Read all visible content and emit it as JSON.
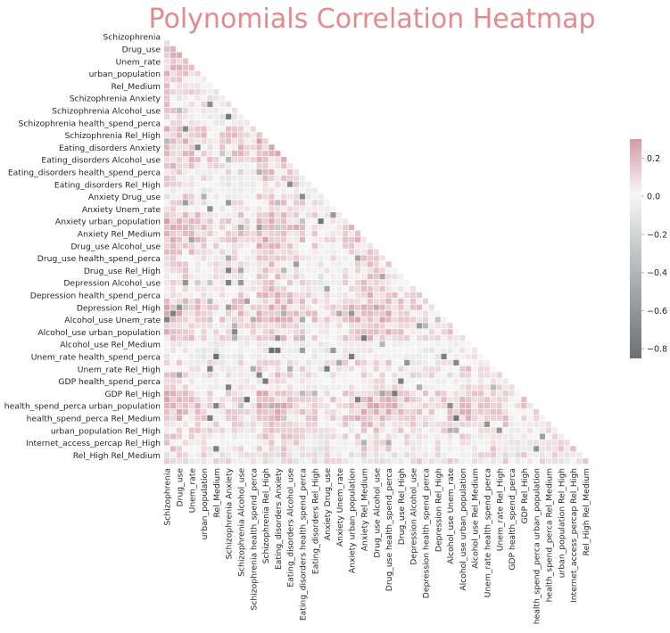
{
  "chart_data": {
    "type": "heatmap",
    "title": "Polynomials Correlation Heatmap",
    "row_tick_labels": [
      "Schizophrenia",
      "Drug_use",
      "Unem_rate",
      "urban_population",
      "Rel_Medium",
      "Schizophrenia Anxiety",
      "Schizophrenia Alcohol_use",
      "Schizophrenia health_spend_perca",
      "Schizophrenia Rel_High",
      "Eating_disorders Anxiety",
      "Eating_disorders Alcohol_use",
      "Eating_disorders health_spend_perca",
      "Eating_disorders Rel_High",
      "Anxiety Drug_use",
      "Anxiety Unem_rate",
      "Anxiety urban_population",
      "Anxiety Rel_Medium",
      "Drug_use Alcohol_use",
      "Drug_use health_spend_perca",
      "Drug_use Rel_High",
      "Depression Alcohol_use",
      "Depression health_spend_perca",
      "Depression Rel_High",
      "Alcohol_use Unem_rate",
      "Alcohol_use urban_population",
      "Alcohol_use Rel_Medium",
      "Unem_rate health_spend_perca",
      "Unem_rate Rel_High",
      "GDP health_spend_perca",
      "GDP Rel_High",
      "health_spend_perca urban_population",
      "health_spend_perca Rel_Medium",
      "urban_population Rel_High",
      "Internet_access_percap Rel_High",
      "Rel_High Rel_Medium"
    ],
    "column_tick_labels": [
      "Schizophrenia",
      "Drug_use",
      "Unem_rate",
      "urban_population",
      "Rel_Medium",
      "Schizophrenia Anxiety",
      "Schizophrenia Alcohol_use",
      "Schizophrenia health_spend_perca",
      "Schizophrenia Rel_High",
      "Eating_disorders Anxiety",
      "Eating_disorders Alcohol_use",
      "Eating_disorders health_spend_perca",
      "Eating_disorders Rel_High",
      "Anxiety Drug_use",
      "Anxiety Unem_rate",
      "Anxiety urban_population",
      "Anxiety Rel_Medium",
      "Drug_use Alcohol_use",
      "Drug_use health_spend_perca",
      "Drug_use Rel_High",
      "Depression Alcohol_use",
      "Depression health_spend_perca",
      "Depression Rel_High",
      "Alcohol_use Unem_rate",
      "Alcohol_use urban_population",
      "Alcohol_use Rel_Medium",
      "Unem_rate health_spend_perca",
      "Unem_rate Rel_High",
      "GDP health_spend_perca",
      "GDP Rel_High",
      "health_spend_perca urban_population",
      "health_spend_perca Rel_Medium",
      "urban_population Rel_High",
      "Internet_access_percap Rel_High",
      "Rel_High Rel_Medium"
    ],
    "n_variables": 70,
    "tick_every": 2,
    "mask": "upper-triangle",
    "value_range": [
      -0.85,
      0.3
    ],
    "colorbar": {
      "ticks": [
        0.2,
        0.0,
        -0.2,
        -0.4,
        -0.6,
        -0.8
      ],
      "tick_labels": [
        "0.2",
        "0.0",
        "−0.2",
        "−0.4",
        "−0.6",
        "−0.8"
      ]
    },
    "colors": {
      "high": "#d9a1ab",
      "mid": "#f7f7f7",
      "low": "#6b7070",
      "title": "#e38a8e",
      "cell_gap": "#ffffff"
    },
    "legend_position": "right",
    "grid": false
  }
}
